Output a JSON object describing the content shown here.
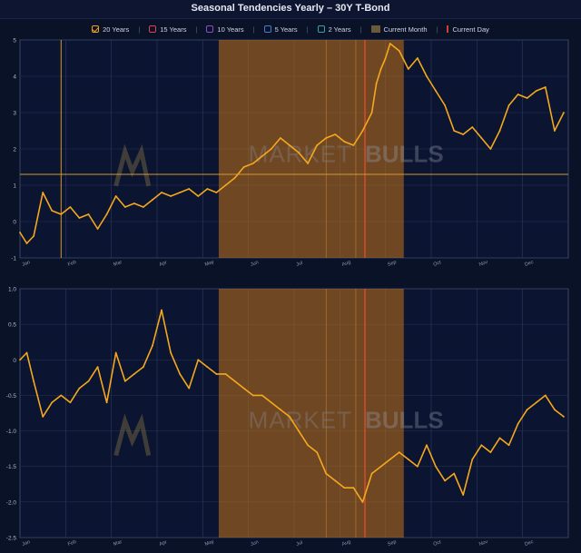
{
  "title": "Seasonal Tendencies Yearly – 30Y T-Bond",
  "legend": [
    {
      "label": "20 Years",
      "color": "#f0a020",
      "checked": true
    },
    {
      "label": "15 Years",
      "color": "#e04050",
      "checked": false
    },
    {
      "label": "10 Years",
      "color": "#8a4fc8",
      "checked": false
    },
    {
      "label": "5 Years",
      "color": "#4a7ac8",
      "checked": false
    },
    {
      "label": "2 Years",
      "color": "#3aa0a8",
      "checked": false
    },
    {
      "label": "Current Month",
      "color": "#6b5a3a",
      "checked": false
    },
    {
      "label": "Current Day",
      "color": "#d0402a",
      "checked": false
    }
  ],
  "colors": {
    "line": "#f5a81c",
    "highlight": "#b36a1a",
    "current_day": "#d24a2a",
    "grid": "#2a3558",
    "bg": "#0a1228"
  },
  "watermark": {
    "text_light": "MARKET",
    "text_bold": "BULLS"
  },
  "chart_data": [
    {
      "type": "line",
      "name": "top",
      "ylim": [
        -1,
        5
      ],
      "yticks": [
        "5",
        "4",
        "3",
        "2",
        "1",
        "0",
        "-1"
      ],
      "months": [
        "Jan",
        "Feb",
        "Mar",
        "Apr",
        "May",
        "Jun",
        "Jul",
        "Aug",
        "Sep",
        "Oct",
        "Nov",
        "Dec"
      ],
      "current_month_span": [
        4.35,
        8.4
      ],
      "current_day": 7.55,
      "marker_x": 0.9,
      "marker_y": 1.3,
      "x": [
        0,
        0.15,
        0.3,
        0.5,
        0.7,
        0.9,
        1.1,
        1.3,
        1.5,
        1.7,
        1.9,
        2.1,
        2.3,
        2.5,
        2.7,
        2.9,
        3.1,
        3.3,
        3.5,
        3.7,
        3.9,
        4.1,
        4.3,
        4.5,
        4.7,
        4.9,
        5.1,
        5.3,
        5.5,
        5.7,
        5.9,
        6.1,
        6.3,
        6.5,
        6.7,
        6.9,
        7.1,
        7.3,
        7.5,
        7.7,
        7.8,
        7.9,
        8.0,
        8.1,
        8.3,
        8.5,
        8.7,
        8.9,
        9.1,
        9.3,
        9.5,
        9.7,
        9.9,
        10.1,
        10.3,
        10.5,
        10.7,
        10.9,
        11.1,
        11.3,
        11.5,
        11.7,
        11.9
      ],
      "y": [
        -0.3,
        -0.6,
        -0.4,
        0.8,
        0.3,
        0.2,
        0.4,
        0.1,
        0.2,
        -0.2,
        0.2,
        0.7,
        0.4,
        0.5,
        0.4,
        0.6,
        0.8,
        0.7,
        0.8,
        0.9,
        0.7,
        0.9,
        0.8,
        1.0,
        1.2,
        1.5,
        1.6,
        1.8,
        2.0,
        2.3,
        2.1,
        1.9,
        1.6,
        2.1,
        2.3,
        2.4,
        2.2,
        2.1,
        2.5,
        3.0,
        3.8,
        4.2,
        4.5,
        4.9,
        4.7,
        4.2,
        4.5,
        4.0,
        3.6,
        3.2,
        2.5,
        2.4,
        2.6,
        2.3,
        2.0,
        2.5,
        3.2,
        3.5,
        3.4,
        3.6,
        3.7,
        2.5,
        3.0
      ]
    },
    {
      "type": "line",
      "name": "bottom",
      "ylim": [
        -2.5,
        1
      ],
      "yticks": [
        "1.0",
        "0.5",
        "0",
        "-0.5",
        "-1.0",
        "-1.5",
        "-2.0",
        "-2.5"
      ],
      "months": [
        "Jan",
        "Feb",
        "Mar",
        "Apr",
        "May",
        "Jun",
        "Jul",
        "Aug",
        "Sep",
        "Oct",
        "Nov",
        "Dec"
      ],
      "current_month_span": [
        4.35,
        8.4
      ],
      "current_day": 7.55,
      "x": [
        0,
        0.15,
        0.3,
        0.5,
        0.7,
        0.9,
        1.1,
        1.3,
        1.5,
        1.7,
        1.9,
        2.1,
        2.3,
        2.5,
        2.7,
        2.9,
        3.1,
        3.3,
        3.5,
        3.7,
        3.9,
        4.1,
        4.3,
        4.5,
        4.7,
        4.9,
        5.1,
        5.3,
        5.5,
        5.7,
        5.9,
        6.1,
        6.3,
        6.5,
        6.7,
        6.9,
        7.1,
        7.3,
        7.5,
        7.7,
        7.9,
        8.1,
        8.3,
        8.5,
        8.7,
        8.9,
        9.1,
        9.3,
        9.5,
        9.7,
        9.9,
        10.1,
        10.3,
        10.5,
        10.7,
        10.9,
        11.1,
        11.3,
        11.5,
        11.7,
        11.9
      ],
      "y": [
        0.0,
        0.1,
        -0.3,
        -0.8,
        -0.6,
        -0.5,
        -0.6,
        -0.4,
        -0.3,
        -0.1,
        -0.6,
        0.1,
        -0.3,
        -0.2,
        -0.1,
        0.2,
        0.7,
        0.1,
        -0.2,
        -0.4,
        0.0,
        -0.1,
        -0.2,
        -0.2,
        -0.3,
        -0.4,
        -0.5,
        -0.5,
        -0.6,
        -0.7,
        -0.8,
        -1.0,
        -1.2,
        -1.3,
        -1.6,
        -1.7,
        -1.8,
        -1.8,
        -2.0,
        -1.6,
        -1.5,
        -1.4,
        -1.3,
        -1.4,
        -1.5,
        -1.2,
        -1.5,
        -1.7,
        -1.6,
        -1.9,
        -1.4,
        -1.2,
        -1.3,
        -1.1,
        -1.2,
        -0.9,
        -0.7,
        -0.6,
        -0.5,
        -0.7,
        -0.8
      ]
    }
  ]
}
